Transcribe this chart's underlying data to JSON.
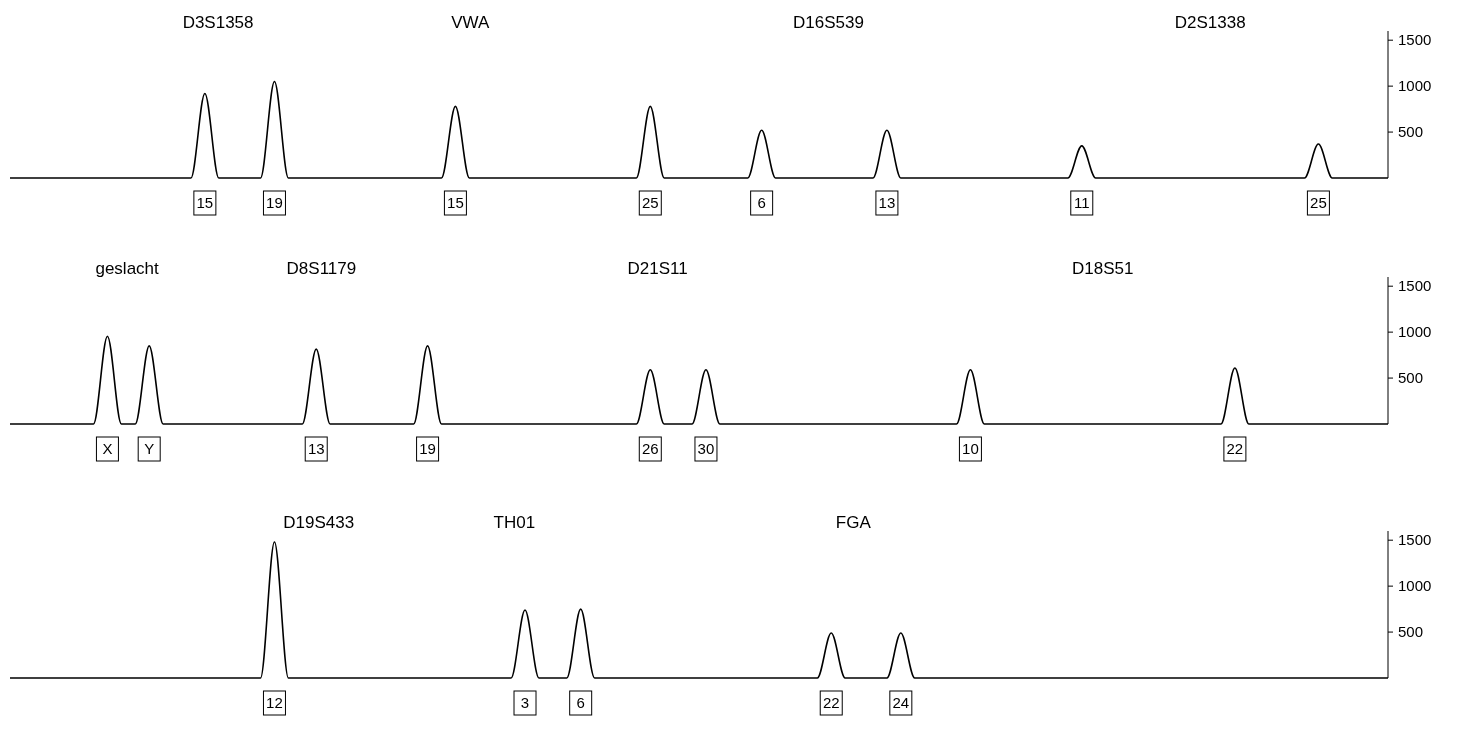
{
  "chart_data": [
    {
      "type": "line",
      "annotations": [
        "D3S1358",
        "VWA",
        "D16S539",
        "D2S1338"
      ],
      "color": "#000000",
      "ylim": [
        0,
        1600
      ],
      "yticks": [
        500,
        1000,
        1500
      ],
      "categories": [
        null,
        null,
        null,
        null,
        null,
        null,
        null,
        null,
        null,
        null,
        null,
        null,
        null,
        null,
        "15",
        null,
        null,
        null,
        null,
        "19",
        null,
        null,
        null,
        null,
        null,
        null,
        null,
        null,
        null,
        null,
        null,
        null,
        "15",
        null,
        null,
        null,
        null,
        null,
        null,
        null,
        null,
        null,
        null,
        null,
        null,
        null,
        "25",
        null,
        null,
        null,
        null,
        null,
        null,
        null,
        "6",
        null,
        null,
        null,
        null,
        null,
        null,
        null,
        null,
        "13",
        null,
        null,
        null,
        null,
        null,
        null,
        null,
        null,
        null,
        null,
        null,
        null,
        null,
        "11",
        null,
        null,
        null,
        null,
        null,
        null,
        null,
        null,
        null,
        null,
        null,
        null,
        null,
        null,
        null,
        null,
        "25",
        null,
        null,
        null,
        null,
        null
      ],
      "values": [
        0,
        0,
        0,
        0,
        0,
        0,
        0,
        0,
        0,
        0,
        0,
        0,
        0,
        0,
        920,
        0,
        0,
        0,
        0,
        1050,
        0,
        0,
        0,
        0,
        0,
        0,
        0,
        0,
        0,
        0,
        0,
        0,
        780,
        0,
        0,
        0,
        0,
        0,
        0,
        0,
        0,
        0,
        0,
        0,
        0,
        0,
        780,
        0,
        0,
        0,
        0,
        0,
        0,
        0,
        520,
        0,
        0,
        0,
        0,
        0,
        0,
        0,
        0,
        520,
        0,
        0,
        0,
        0,
        0,
        0,
        0,
        0,
        0,
        0,
        0,
        0,
        0,
        350,
        0,
        0,
        0,
        0,
        0,
        0,
        0,
        0,
        0,
        0,
        0,
        0,
        0,
        0,
        0,
        0,
        370,
        0,
        0,
        0,
        0,
        0
      ]
    },
    {
      "type": "line",
      "annotations": [
        "geslacht",
        "D8S1179",
        "D21S11",
        "D18S51"
      ],
      "color": "#000000",
      "ylim": [
        0,
        1600
      ],
      "yticks": [
        500,
        1000,
        1500
      ],
      "categories": [
        null,
        null,
        null,
        null,
        null,
        null,
        null,
        "X",
        null,
        null,
        "Y",
        null,
        null,
        null,
        null,
        null,
        null,
        null,
        null,
        null,
        null,
        null,
        "13",
        null,
        null,
        null,
        null,
        null,
        null,
        null,
        "19",
        null,
        null,
        null,
        null,
        null,
        null,
        null,
        null,
        null,
        null,
        null,
        null,
        null,
        null,
        null,
        "26",
        null,
        null,
        null,
        "30",
        null,
        null,
        null,
        null,
        null,
        null,
        null,
        null,
        null,
        null,
        null,
        null,
        null,
        null,
        null,
        null,
        null,
        null,
        "10",
        null,
        null,
        null,
        null,
        null,
        null,
        null,
        null,
        null,
        null,
        null,
        null,
        null,
        null,
        null,
        null,
        null,
        null,
        "22",
        null,
        null,
        null,
        null,
        null,
        null,
        null,
        null,
        null,
        null,
        null
      ],
      "values": [
        0,
        0,
        0,
        0,
        0,
        0,
        0,
        955,
        0,
        0,
        850,
        0,
        0,
        0,
        0,
        0,
        0,
        0,
        0,
        0,
        0,
        0,
        815,
        0,
        0,
        0,
        0,
        0,
        0,
        0,
        850,
        0,
        0,
        0,
        0,
        0,
        0,
        0,
        0,
        0,
        0,
        0,
        0,
        0,
        0,
        0,
        590,
        0,
        0,
        0,
        590,
        0,
        0,
        0,
        0,
        0,
        0,
        0,
        0,
        0,
        0,
        0,
        0,
        0,
        0,
        0,
        0,
        0,
        0,
        590,
        0,
        0,
        0,
        0,
        0,
        0,
        0,
        0,
        0,
        0,
        0,
        0,
        0,
        0,
        0,
        0,
        0,
        0,
        610,
        0,
        0,
        0,
        0,
        0,
        0,
        0,
        0,
        0,
        0,
        0
      ]
    },
    {
      "type": "line",
      "annotations": [
        "D19S433",
        "TH01",
        "FGA"
      ],
      "color": "#000000",
      "ylim": [
        0,
        1600
      ],
      "yticks": [
        500,
        1000,
        1500
      ],
      "categories": [
        null,
        null,
        null,
        null,
        null,
        null,
        null,
        null,
        null,
        null,
        null,
        null,
        null,
        null,
        null,
        null,
        null,
        null,
        null,
        "12",
        null,
        null,
        null,
        null,
        null,
        null,
        null,
        null,
        null,
        null,
        null,
        null,
        null,
        null,
        null,
        null,
        null,
        "3",
        null,
        null,
        null,
        "6",
        null,
        null,
        null,
        null,
        null,
        null,
        null,
        null,
        null,
        null,
        null,
        null,
        null,
        null,
        null,
        null,
        null,
        "22",
        null,
        null,
        null,
        null,
        "24",
        null,
        null,
        null,
        null,
        null,
        null,
        null,
        null,
        null,
        null,
        null,
        null,
        null,
        null,
        null,
        null,
        null,
        null,
        null,
        null,
        null,
        null,
        null,
        null,
        null,
        null,
        null,
        null,
        null,
        null,
        null,
        null,
        null,
        null,
        null
      ],
      "values": [
        0,
        0,
        0,
        0,
        0,
        0,
        0,
        0,
        0,
        0,
        0,
        0,
        0,
        0,
        0,
        0,
        0,
        0,
        0,
        1480,
        0,
        0,
        0,
        0,
        0,
        0,
        0,
        0,
        0,
        0,
        0,
        0,
        0,
        0,
        0,
        0,
        0,
        740,
        0,
        0,
        0,
        750,
        0,
        0,
        0,
        0,
        0,
        0,
        0,
        0,
        0,
        0,
        0,
        0,
        0,
        0,
        0,
        0,
        0,
        490,
        0,
        0,
        0,
        0,
        490,
        0,
        0,
        0,
        0,
        0,
        0,
        0,
        0,
        0,
        0,
        0,
        0,
        0,
        0,
        0,
        0,
        0,
        0,
        0,
        0,
        0,
        0,
        0,
        0,
        0,
        0,
        0,
        0,
        0,
        0,
        0,
        0,
        0,
        0,
        0
      ]
    }
  ]
}
